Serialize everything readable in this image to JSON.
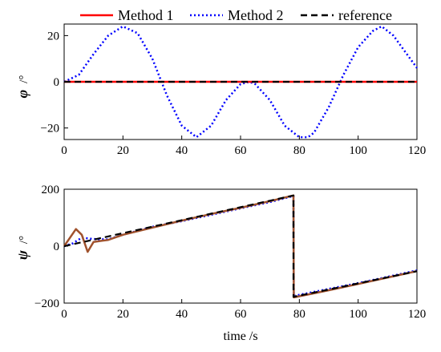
{
  "legend": [
    {
      "label": "Method 1",
      "color": "#ff0000",
      "style": "solid"
    },
    {
      "label": "Method 2",
      "color": "#0000ff",
      "style": "dotted"
    },
    {
      "label": "reference",
      "color": "#000000",
      "style": "dashed"
    }
  ],
  "chart_data": [
    {
      "type": "line",
      "ylabel_symbol": "φ",
      "ylabel_unit": "/°",
      "xlabel": "",
      "xlim": [
        0,
        120
      ],
      "ylim": [
        -25,
        25
      ],
      "xticks": [
        0,
        20,
        40,
        60,
        80,
        100,
        120
      ],
      "yticks": [
        -20,
        0,
        20
      ],
      "xtick_labels": [
        "0",
        "20",
        "40",
        "60",
        "80",
        "100",
        "120"
      ],
      "ytick_labels": [
        "−20",
        "0",
        "20"
      ],
      "series": [
        {
          "name": "Method 1",
          "color": "#ff0000",
          "x": [
            0,
            20,
            40,
            60,
            80,
            100,
            120
          ],
          "y": [
            0,
            0,
            0,
            0,
            0,
            0,
            0
          ]
        },
        {
          "name": "Method 2",
          "color": "#0000ff",
          "x": [
            0,
            5,
            10,
            15,
            20,
            25,
            30,
            35,
            40,
            45,
            50,
            55,
            60,
            63,
            65,
            70,
            75,
            80,
            83,
            85,
            90,
            95,
            100,
            105,
            108,
            112,
            116,
            120
          ],
          "y": [
            0,
            3,
            12,
            20,
            24,
            21,
            10,
            -6,
            -19,
            -24,
            -19,
            -8,
            -1,
            0,
            -1,
            -8,
            -19,
            -24,
            -24,
            -22,
            -11,
            3,
            15,
            22,
            24,
            20,
            13,
            6
          ]
        },
        {
          "name": "reference",
          "color": "#000000",
          "x": [
            0,
            20,
            40,
            60,
            80,
            100,
            120
          ],
          "y": [
            0,
            0,
            0,
            0,
            0,
            0,
            0
          ]
        }
      ]
    },
    {
      "type": "line",
      "ylabel_symbol": "ψ",
      "ylabel_unit": "/°",
      "xlabel": "time /s",
      "xlim": [
        0,
        120
      ],
      "ylim": [
        -200,
        200
      ],
      "xticks": [
        0,
        20,
        40,
        60,
        80,
        100,
        120
      ],
      "yticks": [
        -200,
        0,
        200
      ],
      "xtick_labels": [
        "0",
        "20",
        "40",
        "60",
        "80",
        "100",
        "120"
      ],
      "ytick_labels": [
        "−200",
        "0",
        "200"
      ],
      "series": [
        {
          "name": "Method 1",
          "color": "#a0522d",
          "x": [
            0,
            2,
            4,
            6,
            8,
            10,
            15,
            20,
            30,
            40,
            50,
            60,
            70,
            77.9,
            78,
            78.1,
            90,
            100,
            110,
            120
          ],
          "y": [
            0,
            30,
            60,
            40,
            -20,
            15,
            22,
            40,
            65,
            90,
            113,
            135,
            158,
            178,
            178,
            -180,
            -155,
            -133,
            -110,
            -88
          ]
        },
        {
          "name": "Method 2",
          "color": "#0000ff",
          "x": [
            0,
            3,
            6,
            10,
            15,
            20,
            30,
            40,
            50,
            60,
            70,
            77.9,
            78,
            78.1,
            90,
            100,
            110,
            120
          ],
          "y": [
            0,
            10,
            30,
            25,
            24,
            40,
            68,
            88,
            110,
            133,
            155,
            176,
            176,
            -175,
            -150,
            -130,
            -108,
            -85
          ]
        },
        {
          "name": "reference",
          "color": "#000000",
          "x": [
            0,
            78,
            78,
            120
          ],
          "y": [
            0,
            178,
            -178,
            -88
          ]
        }
      ]
    }
  ]
}
